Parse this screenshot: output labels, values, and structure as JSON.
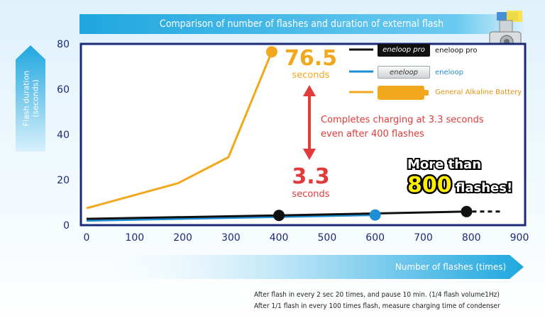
{
  "title": "Comparison of number of flashes and duration of external flash",
  "y_axis_label": "Flash duration\n(seconds)",
  "x_axis_label": "Number of flashes (times)",
  "legend": [
    {
      "badge": "eneloop pro",
      "label": "eneloop pro",
      "color": "#111111"
    },
    {
      "badge": "eneloop",
      "label": "eneloop",
      "color": "#1f8fd4"
    },
    {
      "badge": "",
      "label": "General Alkaline Battery",
      "color": "#f2a81d"
    }
  ],
  "annotations": {
    "alkaline_value": "76.5",
    "alkaline_unit": "seconds",
    "eneloop_value": "3.3",
    "eneloop_unit": "seconds",
    "note": "Completes charging at 3.3 seconds\neven after 400 flashes",
    "callout_line1": "More than",
    "callout_number": "800",
    "callout_line2": "flashes!"
  },
  "footnotes": [
    "After flash in every 2 sec 20 times, and pause 10 min. (1/4 flash volume1Hz)",
    "After 1/1 flash in every 100 times flash, measure charging time of condenser"
  ],
  "colors": {
    "accent": "#1fa7df",
    "alkaline": "#f2a81d",
    "eneloop": "#1f8fd4",
    "pro": "#111111",
    "highlight": "#e03a3a"
  },
  "chart_data": {
    "type": "line",
    "xlim": [
      0,
      900
    ],
    "ylim": [
      0,
      80
    ],
    "x_ticks": [
      0,
      100,
      200,
      300,
      400,
      500,
      600,
      700,
      800,
      900
    ],
    "y_ticks": [
      0,
      20,
      40,
      60,
      80
    ],
    "series": [
      {
        "name": "General Alkaline Battery",
        "color": "#f2a81d",
        "x": [
          0,
          190,
          295,
          385
        ],
        "y": [
          7.5,
          18.5,
          30,
          76.5
        ],
        "end_marker": true
      },
      {
        "name": "eneloop",
        "color": "#1f8fd4",
        "x": [
          0,
          600
        ],
        "y": [
          2,
          4.5
        ],
        "end_marker": true
      },
      {
        "name": "eneloop pro",
        "color": "#111111",
        "x": [
          0,
          400,
          790
        ],
        "y": [
          2.8,
          4.3,
          6
        ],
        "markers_at": [
          400,
          790
        ],
        "dashed_to": 860
      }
    ]
  }
}
